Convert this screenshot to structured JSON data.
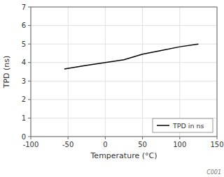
{
  "chart_data": {
    "type": "line",
    "xlabel": "Temperature (°C)",
    "ylabel": "TPD (ns)",
    "x": [
      -55,
      -25,
      0,
      25,
      50,
      75,
      100,
      125
    ],
    "series": [
      {
        "name": "TPD in ns",
        "color": "#000000",
        "values": [
          3.65,
          3.85,
          4.0,
          4.15,
          4.45,
          4.65,
          4.85,
          5.0
        ]
      }
    ],
    "xlim": [
      -100,
      150
    ],
    "ylim": [
      0,
      7
    ],
    "xticks": [
      -100,
      -50,
      0,
      50,
      100,
      150
    ],
    "yticks": [
      0,
      1,
      2,
      3,
      4,
      5,
      6,
      7
    ],
    "grid": true,
    "legend": "lower right",
    "annotations": [
      "C001"
    ]
  }
}
